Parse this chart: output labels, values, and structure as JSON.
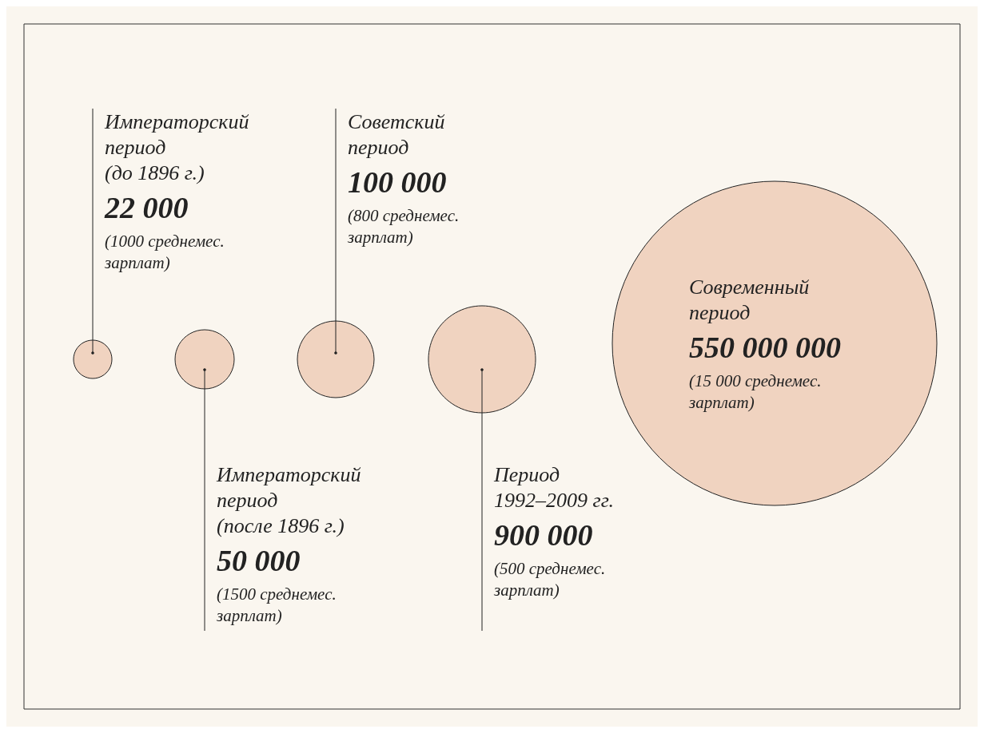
{
  "chart_data": {
    "type": "other",
    "categories": [
      "Императорский\nпериод\n(до 1896 г.)",
      "Императорский\nпериод\n(после 1896 г.)",
      "Советский\nпериод",
      "Период\n1992–2009 гг.",
      "Современный\nпериод"
    ],
    "values": [
      22000,
      50000,
      100000,
      900000,
      550000000
    ],
    "data_labels": true,
    "color": "#f0d3c0",
    "annotations": [
      {
        "text": "(1000 среднемес.\nзарплат)",
        "x": "Императорский\nпериод\n(до 1896 г.)"
      },
      {
        "text": "(1500 среднемес.\nзарплат)",
        "x": "Императорский\nпериод\n(после 1896 г.)"
      },
      {
        "text": "(800 среднемес.\nзарплат)",
        "x": "Советский\nпериод"
      },
      {
        "text": "(500 среднемес.\nзарплат)",
        "x": "Период\n1992–2009 гг."
      },
      {
        "text": "(15 000 среднемес.\nзарплат)",
        "x": "Современный\nпериод"
      }
    ]
  }
}
